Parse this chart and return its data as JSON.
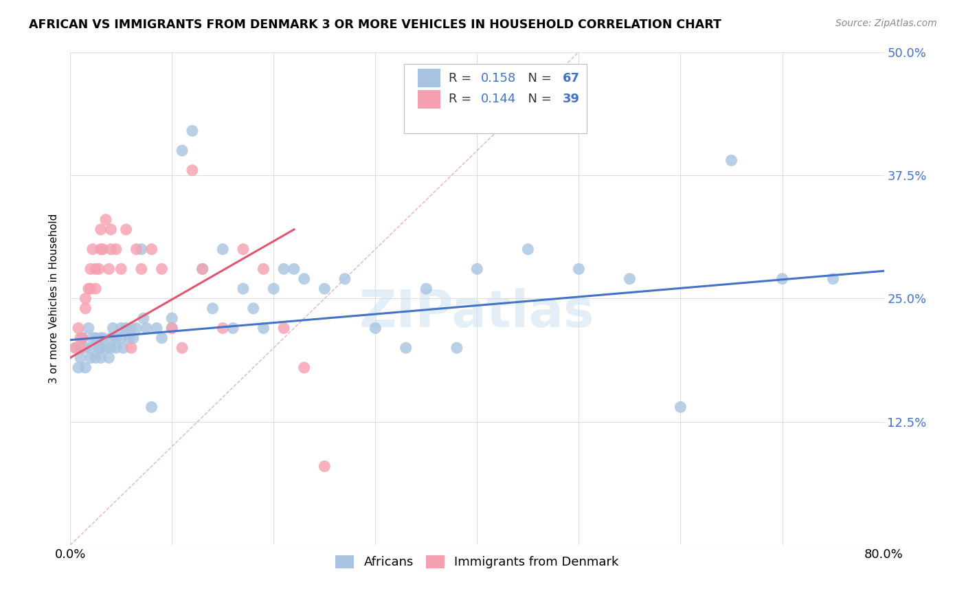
{
  "title": "AFRICAN VS IMMIGRANTS FROM DENMARK 3 OR MORE VEHICLES IN HOUSEHOLD CORRELATION CHART",
  "source": "Source: ZipAtlas.com",
  "ylabel": "3 or more Vehicles in Household",
  "watermark": "ZIPatlas",
  "xlim": [
    0.0,
    0.8
  ],
  "ylim": [
    0.0,
    0.5
  ],
  "xticks": [
    0.0,
    0.1,
    0.2,
    0.3,
    0.4,
    0.5,
    0.6,
    0.7,
    0.8
  ],
  "xticklabels": [
    "0.0%",
    "",
    "",
    "",
    "",
    "",
    "",
    "",
    "80.0%"
  ],
  "yticks": [
    0.0,
    0.125,
    0.25,
    0.375,
    0.5
  ],
  "yticklabels_right": [
    "",
    "12.5%",
    "25.0%",
    "37.5%",
    "50.0%"
  ],
  "R_african": 0.158,
  "N_african": 67,
  "R_denmark": 0.144,
  "N_denmark": 39,
  "african_color": "#a8c4e0",
  "denmark_color": "#f4a0b0",
  "trendline_african_color": "#4472c4",
  "trendline_denmark_color": "#e05570",
  "diagonal_color": "#e0b0b0",
  "grid_color": "#dddddd",
  "africans_x": [
    0.005,
    0.008,
    0.01,
    0.012,
    0.015,
    0.015,
    0.018,
    0.02,
    0.02,
    0.022,
    0.025,
    0.025,
    0.028,
    0.03,
    0.03,
    0.03,
    0.032,
    0.035,
    0.038,
    0.04,
    0.04,
    0.042,
    0.045,
    0.045,
    0.05,
    0.05,
    0.052,
    0.055,
    0.058,
    0.06,
    0.062,
    0.065,
    0.07,
    0.072,
    0.075,
    0.08,
    0.085,
    0.09,
    0.1,
    0.1,
    0.11,
    0.12,
    0.13,
    0.14,
    0.15,
    0.16,
    0.17,
    0.18,
    0.19,
    0.2,
    0.21,
    0.22,
    0.23,
    0.25,
    0.27,
    0.3,
    0.33,
    0.35,
    0.38,
    0.4,
    0.45,
    0.5,
    0.55,
    0.6,
    0.65,
    0.7,
    0.75
  ],
  "africans_y": [
    0.2,
    0.18,
    0.19,
    0.21,
    0.2,
    0.18,
    0.22,
    0.2,
    0.19,
    0.21,
    0.21,
    0.19,
    0.2,
    0.21,
    0.2,
    0.19,
    0.21,
    0.2,
    0.19,
    0.21,
    0.2,
    0.22,
    0.21,
    0.2,
    0.22,
    0.21,
    0.2,
    0.22,
    0.21,
    0.22,
    0.21,
    0.22,
    0.3,
    0.23,
    0.22,
    0.14,
    0.22,
    0.21,
    0.22,
    0.23,
    0.4,
    0.42,
    0.28,
    0.24,
    0.3,
    0.22,
    0.26,
    0.24,
    0.22,
    0.26,
    0.28,
    0.28,
    0.27,
    0.26,
    0.27,
    0.22,
    0.2,
    0.26,
    0.2,
    0.28,
    0.3,
    0.28,
    0.27,
    0.14,
    0.39,
    0.27,
    0.27
  ],
  "denmark_x": [
    0.005,
    0.008,
    0.01,
    0.01,
    0.012,
    0.015,
    0.015,
    0.018,
    0.02,
    0.02,
    0.022,
    0.025,
    0.025,
    0.028,
    0.03,
    0.03,
    0.032,
    0.035,
    0.038,
    0.04,
    0.04,
    0.045,
    0.05,
    0.055,
    0.06,
    0.065,
    0.07,
    0.08,
    0.09,
    0.1,
    0.11,
    0.12,
    0.13,
    0.15,
    0.17,
    0.19,
    0.21,
    0.23,
    0.25
  ],
  "denmark_y": [
    0.2,
    0.22,
    0.21,
    0.2,
    0.21,
    0.25,
    0.24,
    0.26,
    0.28,
    0.26,
    0.3,
    0.28,
    0.26,
    0.28,
    0.3,
    0.32,
    0.3,
    0.33,
    0.28,
    0.3,
    0.32,
    0.3,
    0.28,
    0.32,
    0.2,
    0.3,
    0.28,
    0.3,
    0.28,
    0.22,
    0.2,
    0.38,
    0.28,
    0.22,
    0.3,
    0.28,
    0.22,
    0.18,
    0.08
  ],
  "trendline_african_x0": 0.0,
  "trendline_african_y0": 0.208,
  "trendline_african_x1": 0.8,
  "trendline_african_y1": 0.278,
  "trendline_denmark_x0": 0.0,
  "trendline_denmark_y0": 0.19,
  "trendline_denmark_x1": 0.22,
  "trendline_denmark_y1": 0.32
}
